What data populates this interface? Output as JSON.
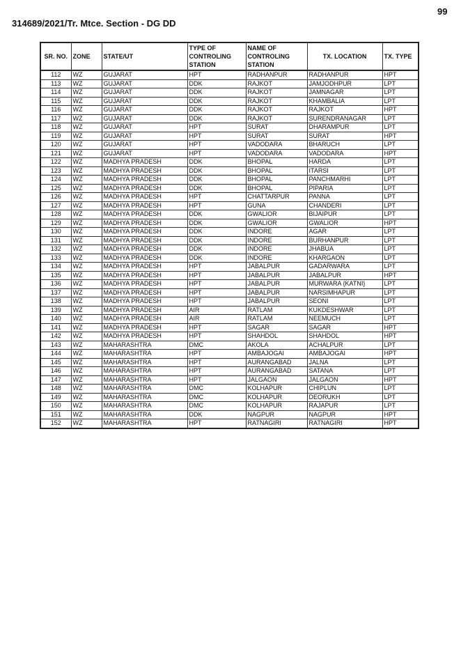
{
  "page_number": "99",
  "title": "314689/2021/Tr. Mtce. Section - DG DD",
  "table": {
    "headers": [
      "SR. NO.",
      "ZONE",
      "STATE/UT",
      "TYPE OF CONTROLING STATION",
      "NAME OF CONTROLING STATION",
      "TX. LOCATION",
      "TX. TYPE"
    ],
    "rows": [
      [
        "112",
        "WZ",
        "GUJARAT",
        "HPT",
        "RADHANPUR",
        "RADHANPUR",
        "HPT"
      ],
      [
        "113",
        "WZ",
        "GUJARAT",
        "DDK",
        "RAJKOT",
        "JAMJODHPUR",
        "LPT"
      ],
      [
        "114",
        "WZ",
        "GUJARAT",
        "DDK",
        "RAJKOT",
        "JAMNAGAR",
        "LPT"
      ],
      [
        "115",
        "WZ",
        "GUJARAT",
        "DDK",
        "RAJKOT",
        "KHAMBALIA",
        "LPT"
      ],
      [
        "116",
        "WZ",
        "GUJARAT",
        "DDK",
        "RAJKOT",
        "RAJKOT",
        "HPT"
      ],
      [
        "117",
        "WZ",
        "GUJARAT",
        "DDK",
        "RAJKOT",
        "SURENDRANAGAR",
        "LPT"
      ],
      [
        "118",
        "WZ",
        "GUJARAT",
        "HPT",
        "SURAT",
        "DHARAMPUR",
        "LPT"
      ],
      [
        "119",
        "WZ",
        "GUJARAT",
        "HPT",
        "SURAT",
        "SURAT",
        "HPT"
      ],
      [
        "120",
        "WZ",
        "GUJARAT",
        "HPT",
        "VADODARA",
        "BHARUCH",
        "LPT"
      ],
      [
        "121",
        "WZ",
        "GUJARAT",
        "HPT",
        "VADODARA",
        "VADODARA",
        "HPT"
      ],
      [
        "122",
        "WZ",
        "MADHYA PRADESH",
        "DDK",
        "BHOPAL",
        "HARDA",
        "LPT"
      ],
      [
        "123",
        "WZ",
        "MADHYA PRADESH",
        "DDK",
        "BHOPAL",
        "ITARSI",
        "LPT"
      ],
      [
        "124",
        "WZ",
        "MADHYA PRADESH",
        "DDK",
        "BHOPAL",
        "PANCHMARHI",
        "LPT"
      ],
      [
        "125",
        "WZ",
        "MADHYA PRADESH",
        "DDK",
        "BHOPAL",
        "PIPARIA",
        "LPT"
      ],
      [
        "126",
        "WZ",
        "MADHYA PRADESH",
        "HPT",
        "CHATTARPUR",
        "PANNA",
        "LPT"
      ],
      [
        "127",
        "WZ",
        "MADHYA PRADESH",
        "HPT",
        "GUNA",
        "CHANDERI",
        "LPT"
      ],
      [
        "128",
        "WZ",
        "MADHYA PRADESH",
        "DDK",
        "GWALIOR",
        "BIJAIPUR",
        "LPT"
      ],
      [
        "129",
        "WZ",
        "MADHYA PRADESH",
        "DDK",
        "GWALIOR",
        "GWALIOR",
        "HPT"
      ],
      [
        "130",
        "WZ",
        "MADHYA PRADESH",
        "DDK",
        "INDORE",
        "AGAR",
        "LPT"
      ],
      [
        "131",
        "WZ",
        "MADHYA PRADESH",
        "DDK",
        "INDORE",
        "BURHANPUR",
        "LPT"
      ],
      [
        "132",
        "WZ",
        "MADHYA PRADESH",
        "DDK",
        "INDORE",
        "JHABUA",
        "LPT"
      ],
      [
        "133",
        "WZ",
        "MADHYA PRADESH",
        "DDK",
        "INDORE",
        "KHARGAON",
        "LPT"
      ],
      [
        "134",
        "WZ",
        "MADHYA PRADESH",
        "HPT",
        "JABALPUR",
        "GADARWARA",
        "LPT"
      ],
      [
        "135",
        "WZ",
        "MADHYA PRADESH",
        "HPT",
        "JABALPUR",
        "JABALPUR",
        "HPT"
      ],
      [
        "136",
        "WZ",
        "MADHYA PRADESH",
        "HPT",
        "JABALPUR",
        "MURWARA {KATNI}",
        "LPT"
      ],
      [
        "137",
        "WZ",
        "MADHYA PRADESH",
        "HPT",
        "JABALPUR",
        "NARSIMHAPUR",
        "LPT"
      ],
      [
        "138",
        "WZ",
        "MADHYA PRADESH",
        "HPT",
        "JABALPUR",
        "SEONI",
        "LPT"
      ],
      [
        "139",
        "WZ",
        "MADHYA PRADESH",
        "AIR",
        "RATLAM",
        "KUKDESHWAR",
        "LPT"
      ],
      [
        "140",
        "WZ",
        "MADHYA PRADESH",
        "AIR",
        "RATLAM",
        "NEEMUCH",
        "LPT"
      ],
      [
        "141",
        "WZ",
        "MADHYA PRADESH",
        "HPT",
        "SAGAR",
        "SAGAR",
        "HPT"
      ],
      [
        "142",
        "WZ",
        "MADHYA PRADESH",
        "HPT",
        "SHAHDOL",
        "SHAHDOL",
        "HPT"
      ],
      [
        "143",
        "WZ",
        "MAHARASHTRA",
        "DMC",
        "AKOLA",
        "ACHALPUR",
        "LPT"
      ],
      [
        "144",
        "WZ",
        "MAHARASHTRA",
        "HPT",
        "AMBAJOGAI",
        "AMBAJOGAI",
        "HPT"
      ],
      [
        "145",
        "WZ",
        "MAHARASHTRA",
        "HPT",
        "AURANGABAD",
        "JALNA",
        "LPT"
      ],
      [
        "146",
        "WZ",
        "MAHARASHTRA",
        "HPT",
        "AURANGABAD",
        "SATANA",
        "LPT"
      ],
      [
        "147",
        "WZ",
        "MAHARASHTRA",
        "HPT",
        "JALGAON",
        "JALGAON",
        "HPT"
      ],
      [
        "148",
        "WZ",
        "MAHARASHTRA",
        "DMC",
        "KOLHAPUR",
        "CHIPLUN",
        "LPT"
      ],
      [
        "149",
        "WZ",
        "MAHARASHTRA",
        "DMC",
        "KOLHAPUR",
        "DEORUKH",
        "LPT"
      ],
      [
        "150",
        "WZ",
        "MAHARASHTRA",
        "DMC",
        "KOLHAPUR",
        "RAJAPUR",
        "LPT"
      ],
      [
        "151",
        "WZ",
        "MAHARASHTRA",
        "DDK",
        "NAGPUR",
        "NAGPUR",
        "HPT"
      ],
      [
        "152",
        "WZ",
        "MAHARASHTRA",
        "HPT",
        "RATNAGIRI",
        "RATNAGIRI",
        "HPT"
      ]
    ]
  }
}
